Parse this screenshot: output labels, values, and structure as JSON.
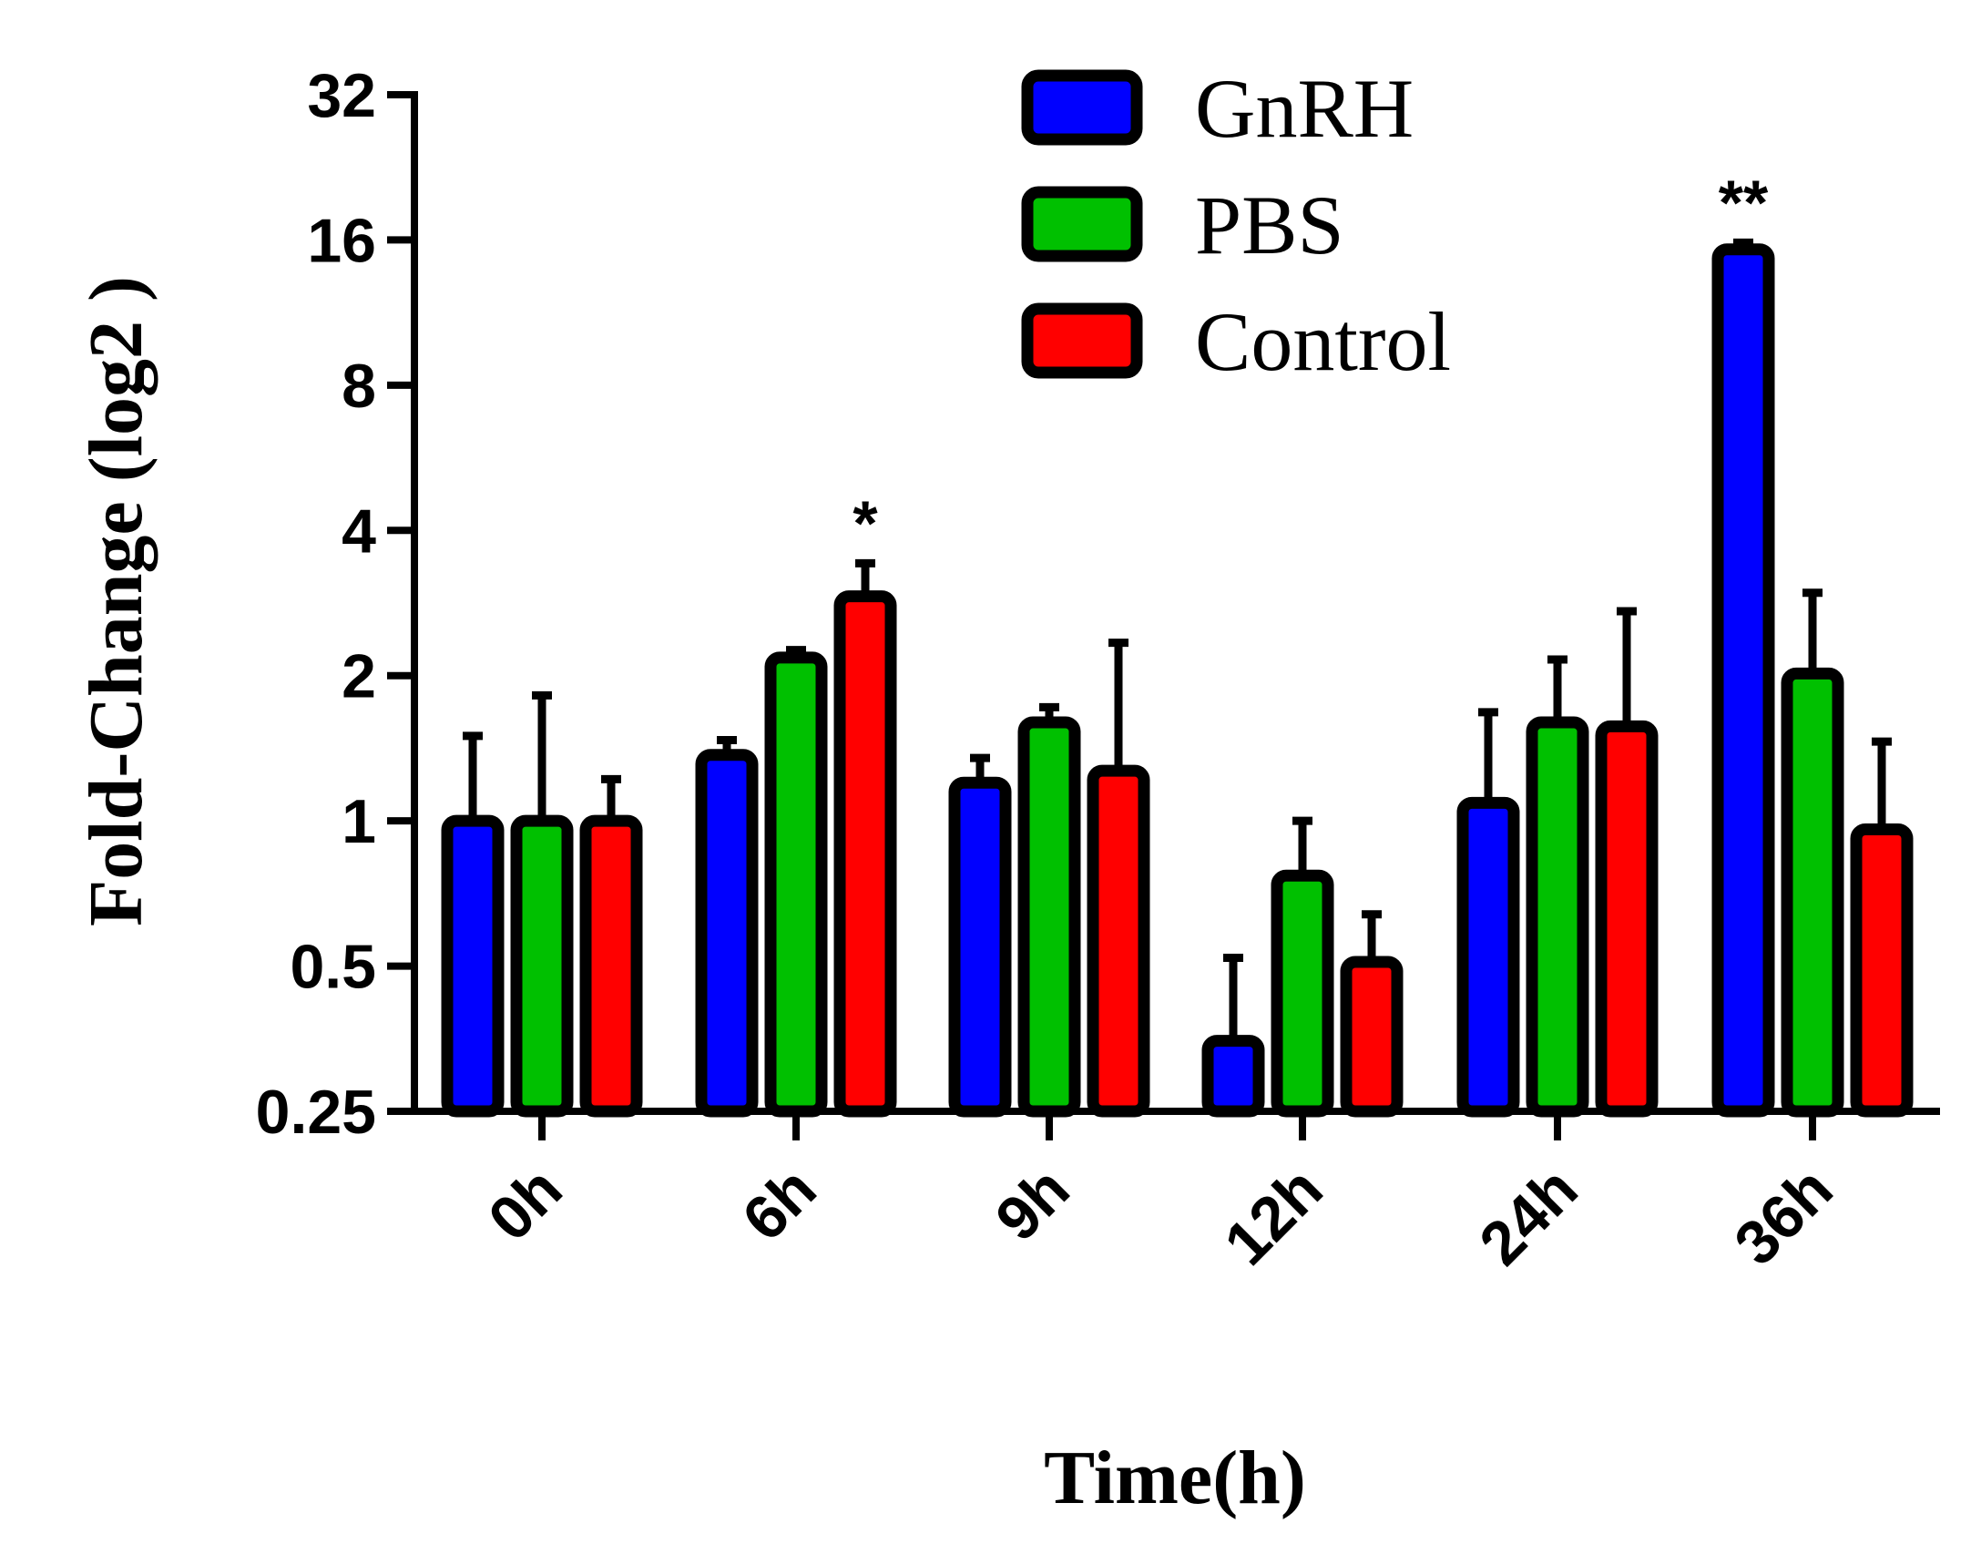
{
  "chart_data": {
    "type": "bar",
    "title": "",
    "xlabel": "Time(h)",
    "ylabel": "Fold-Change (log2 )",
    "yscale": "log2",
    "ylim": [
      0.25,
      32
    ],
    "yticks": [
      0.25,
      0.5,
      1,
      2,
      4,
      8,
      16,
      32
    ],
    "ytick_labels": [
      "0.25",
      "0.5",
      "1",
      "2",
      "4",
      "8",
      "16",
      "32"
    ],
    "categories": [
      "0h",
      "6h",
      "9h",
      "12h",
      "24h",
      "36h"
    ],
    "series": [
      {
        "name": "GnRH",
        "color": "#0000ff",
        "values": [
          1.0,
          1.37,
          1.2,
          0.35,
          1.09,
          15.3
        ],
        "error": [
          0.5,
          0.1,
          0.15,
          0.17,
          0.59,
          0.5
        ]
      },
      {
        "name": "PBS",
        "color": "#00c000",
        "values": [
          1.0,
          2.18,
          1.6,
          0.77,
          1.6,
          2.02
        ],
        "error": [
          0.82,
          0.08,
          0.12,
          0.23,
          0.56,
          0.95
        ]
      },
      {
        "name": "Control",
        "color": "#ff0000",
        "values": [
          1.0,
          2.92,
          1.27,
          0.51,
          1.57,
          0.96
        ],
        "error": [
          0.22,
          0.5,
          1.07,
          0.13,
          1.15,
          0.5
        ]
      }
    ],
    "annotations": [
      {
        "category": "6h",
        "series": "Control",
        "text": "*"
      },
      {
        "category": "36h",
        "series": "GnRH",
        "text": "**"
      }
    ],
    "legend": {
      "position": "top-right",
      "entries": [
        "GnRH",
        "PBS",
        "Control"
      ]
    }
  }
}
